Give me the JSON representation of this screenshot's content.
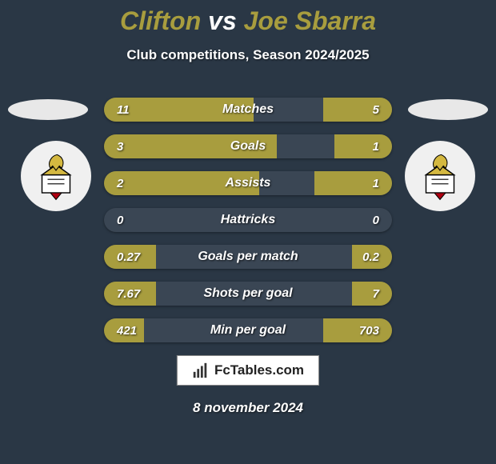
{
  "title": {
    "player1": "Clifton",
    "vs": "vs",
    "player2": "Joe Sbarra",
    "player1_color": "#a89d3e",
    "vs_color": "#ffffff",
    "player2_color": "#a89d3e"
  },
  "subtitle": "Club competitions, Season 2024/2025",
  "background_color": "#2a3745",
  "bar_color": "#a89d3e",
  "bar_bg_color": "#3a4654",
  "stats": [
    {
      "label": "Matches",
      "left_val": "11",
      "right_val": "5",
      "left_pct": 52,
      "right_pct": 24
    },
    {
      "label": "Goals",
      "left_val": "3",
      "right_val": "1",
      "left_pct": 60,
      "right_pct": 20
    },
    {
      "label": "Assists",
      "left_val": "2",
      "right_val": "1",
      "left_pct": 54,
      "right_pct": 27
    },
    {
      "label": "Hattricks",
      "left_val": "0",
      "right_val": "0",
      "left_pct": 0,
      "right_pct": 0
    },
    {
      "label": "Goals per match",
      "left_val": "0.27",
      "right_val": "0.2",
      "left_pct": 18,
      "right_pct": 14
    },
    {
      "label": "Shots per goal",
      "left_val": "7.67",
      "right_val": "7",
      "left_pct": 18,
      "right_pct": 14
    },
    {
      "label": "Min per goal",
      "left_val": "421",
      "right_val": "703",
      "left_pct": 14,
      "right_pct": 24
    }
  ],
  "branding": "FcTables.com",
  "date": "8 november 2024"
}
